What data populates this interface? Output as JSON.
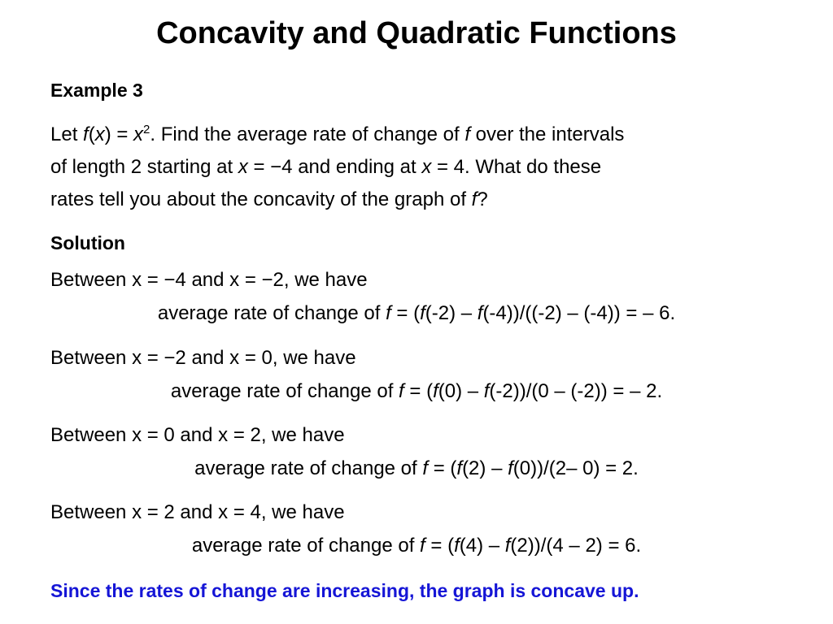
{
  "title": "Concavity and Quadratic Functions",
  "example": {
    "heading": "Example 3",
    "problem": [
      "Let ",
      "f",
      "(",
      "x",
      ") = ",
      "x",
      "2",
      ". Find the average rate of change of ",
      "f",
      " over the intervals",
      "of length 2 starting at ",
      "x",
      " = −4 and ending at ",
      "x",
      " = 4. What do these",
      "rates tell you about the concavity of the graph of ",
      "f",
      "?"
    ]
  },
  "solution": {
    "heading": "Solution",
    "steps": [
      {
        "intro": "Between x = −4 and x = −2, we have",
        "formula": [
          "average rate of change of ",
          "f",
          " = (",
          "f",
          "(-2) – ",
          "f",
          "(-4))/((-2) – (-4)) = – 6."
        ]
      },
      {
        "intro": "Between x = −2 and x = 0, we have",
        "formula": [
          "average rate of change of ",
          "f",
          " = (",
          "f",
          "(0) – ",
          "f",
          "(-2))/(0 – (-2)) = – 2."
        ]
      },
      {
        "intro": "Between x = 0 and x = 2, we have",
        "formula": [
          "average rate of change of ",
          "f",
          " = (",
          "f",
          "(2) – ",
          "f",
          "(0))/(2– 0) = 2."
        ]
      },
      {
        "intro": "Between x = 2 and x = 4, we have",
        "formula": [
          "average rate of change of ",
          "f",
          " = (",
          "f",
          "(4) – ",
          "f",
          "(2))/(4 – 2) = 6."
        ]
      }
    ],
    "conclusion": "Since the rates of change are increasing, the graph is concave up."
  }
}
